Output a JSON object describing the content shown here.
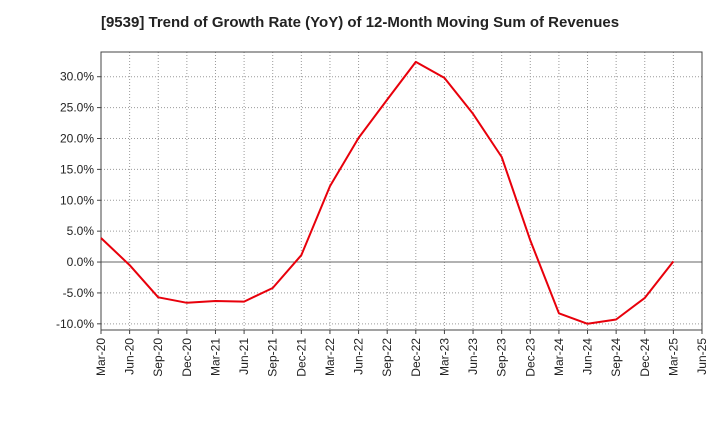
{
  "chart_data": {
    "type": "line",
    "title": "[9539]  Trend of Growth Rate (YoY) of 12-Month Moving Sum of Revenues",
    "xlabel": "",
    "ylabel": "",
    "y_unit": "%",
    "ylim": [
      -11,
      34
    ],
    "y_ticks": [
      -10,
      -5,
      0,
      5,
      10,
      15,
      20,
      25,
      30
    ],
    "y_tick_labels": [
      "-10.0%",
      "-5.0%",
      "0.0%",
      "5.0%",
      "10.0%",
      "15.0%",
      "20.0%",
      "25.0%",
      "30.0%"
    ],
    "x_tick_labels": [
      "Mar-20",
      "Jun-20",
      "Sep-20",
      "Dec-20",
      "Mar-21",
      "Jun-21",
      "Sep-21",
      "Dec-21",
      "Mar-22",
      "Jun-22",
      "Sep-22",
      "Dec-22",
      "Mar-23",
      "Jun-23",
      "Sep-23",
      "Dec-23",
      "Mar-24",
      "Jun-24",
      "Sep-24",
      "Dec-24",
      "Mar-25",
      "Jun-25"
    ],
    "grid": true,
    "legend": "none",
    "line_color": "#e8000b",
    "series": [
      {
        "x": [
          "Mar-20",
          "Jun-20",
          "Sep-20",
          "Dec-20",
          "Mar-21",
          "Jun-21",
          "Sep-21",
          "Dec-21",
          "Mar-22",
          "Jun-22",
          "Sep-22",
          "Dec-22",
          "Mar-23",
          "Jun-23",
          "Sep-23",
          "Dec-23",
          "Mar-24",
          "Jun-24",
          "Sep-24",
          "Dec-24",
          "Mar-25"
        ],
        "values": [
          3.9,
          -0.5,
          -5.7,
          -6.6,
          -6.3,
          -6.4,
          -4.2,
          1.1,
          12.3,
          20.1,
          26.3,
          32.4,
          29.8,
          24.0,
          17.0,
          3.5,
          -8.3,
          -10.0,
          -9.3,
          -5.8,
          0.1
        ]
      }
    ]
  }
}
